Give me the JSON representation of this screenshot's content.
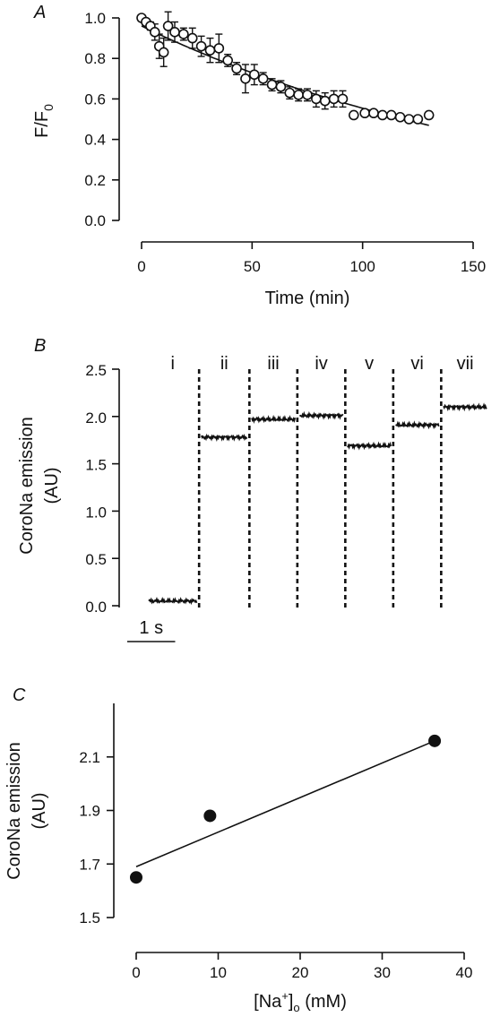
{
  "chart_data": [
    {
      "panel": "A",
      "type": "scatter",
      "xlabel": "Time (min)",
      "ylabel_main": "F/F",
      "ylabel_sub": "0",
      "xlim": [
        0,
        150
      ],
      "ylim": [
        0,
        1.0
      ],
      "xticks": [
        "0",
        "50",
        "100",
        "150"
      ],
      "yticks": [
        "0.0",
        "0.2",
        "0.4",
        "0.6",
        "0.8",
        "1.0"
      ],
      "points": [
        {
          "x": 0,
          "y": 1.0,
          "err": 0
        },
        {
          "x": 2,
          "y": 0.98,
          "err": 0.01
        },
        {
          "x": 4,
          "y": 0.96,
          "err": 0.02
        },
        {
          "x": 6,
          "y": 0.93,
          "err": 0.04
        },
        {
          "x": 8,
          "y": 0.86,
          "err": 0.06
        },
        {
          "x": 10,
          "y": 0.83,
          "err": 0.07
        },
        {
          "x": 12,
          "y": 0.96,
          "err": 0.07
        },
        {
          "x": 15,
          "y": 0.93,
          "err": 0.05
        },
        {
          "x": 19,
          "y": 0.92,
          "err": 0.03
        },
        {
          "x": 23,
          "y": 0.9,
          "err": 0.05
        },
        {
          "x": 27,
          "y": 0.86,
          "err": 0.05
        },
        {
          "x": 31,
          "y": 0.84,
          "err": 0.06
        },
        {
          "x": 35,
          "y": 0.85,
          "err": 0.07
        },
        {
          "x": 39,
          "y": 0.79,
          "err": 0.03
        },
        {
          "x": 43,
          "y": 0.75,
          "err": 0.03
        },
        {
          "x": 47,
          "y": 0.7,
          "err": 0.07
        },
        {
          "x": 51,
          "y": 0.72,
          "err": 0.05
        },
        {
          "x": 55,
          "y": 0.7,
          "err": 0.03
        },
        {
          "x": 59,
          "y": 0.67,
          "err": 0.03
        },
        {
          "x": 63,
          "y": 0.66,
          "err": 0.03
        },
        {
          "x": 67,
          "y": 0.63,
          "err": 0.03
        },
        {
          "x": 71,
          "y": 0.62,
          "err": 0.03
        },
        {
          "x": 75,
          "y": 0.62,
          "err": 0.03
        },
        {
          "x": 79,
          "y": 0.6,
          "err": 0.04
        },
        {
          "x": 83,
          "y": 0.59,
          "err": 0.04
        },
        {
          "x": 87,
          "y": 0.6,
          "err": 0.04
        },
        {
          "x": 91,
          "y": 0.6,
          "err": 0.04
        },
        {
          "x": 96,
          "y": 0.52,
          "err": 0
        },
        {
          "x": 101,
          "y": 0.53,
          "err": 0
        },
        {
          "x": 105,
          "y": 0.53,
          "err": 0
        },
        {
          "x": 109,
          "y": 0.52,
          "err": 0
        },
        {
          "x": 113,
          "y": 0.52,
          "err": 0
        },
        {
          "x": 117,
          "y": 0.51,
          "err": 0
        },
        {
          "x": 121,
          "y": 0.5,
          "err": 0
        },
        {
          "x": 125,
          "y": 0.5,
          "err": 0
        },
        {
          "x": 130,
          "y": 0.52,
          "err": 0
        }
      ],
      "fit": {
        "type": "exponential",
        "y0": 0.96,
        "k": 0.0055,
        "x_end": 130
      }
    },
    {
      "panel": "B",
      "type": "line",
      "ylabel_line1": "CoroNa emission",
      "ylabel_line2": "(AU)",
      "ylim": [
        0,
        2.5
      ],
      "yticks": [
        "0.0",
        "0.5",
        "1.0",
        "1.5",
        "2.0",
        "2.5"
      ],
      "xlim_s": [
        0,
        6.6
      ],
      "segments": [
        {
          "label": "i",
          "level": 0.05,
          "start": 0.0,
          "end": 1.0
        },
        {
          "label": "ii",
          "level": 1.78,
          "start": 1.1,
          "end": 2.05
        },
        {
          "label": "iii",
          "level": 1.97,
          "start": 2.15,
          "end": 3.05
        },
        {
          "label": "iv",
          "level": 2.01,
          "start": 3.15,
          "end": 4.05
        },
        {
          "label": "v",
          "level": 1.69,
          "start": 4.15,
          "end": 5.05
        },
        {
          "label": "vi",
          "level": 1.91,
          "start": 5.15,
          "end": 6.05
        },
        {
          "label": "vii",
          "level": 2.1,
          "start": 6.15,
          "end": 7.05
        }
      ],
      "dividers_s": [
        1.05,
        2.1,
        3.1,
        4.1,
        5.1,
        6.1
      ],
      "scalebar_label": "1 s",
      "scalebar_s": 1
    },
    {
      "panel": "C",
      "type": "scatter",
      "xlabel_pre": "[Na",
      "xlabel_sup": "+",
      "xlabel_mid": "]",
      "xlabel_sub": "o",
      "xlabel_post": " (mM)",
      "ylabel_line1": "CoroNa emission",
      "ylabel_line2": "(AU)",
      "xlim": [
        0,
        40
      ],
      "ylim": [
        1.5,
        2.3
      ],
      "xticks": [
        "0",
        "10",
        "20",
        "30",
        "40"
      ],
      "yticks": [
        "1.5",
        "1.7",
        "1.9",
        "2.1"
      ],
      "points": [
        {
          "x": 0,
          "y": 1.65
        },
        {
          "x": 9,
          "y": 1.88
        },
        {
          "x": 36.4,
          "y": 2.16
        }
      ],
      "fit": {
        "x": [
          0,
          36.4
        ],
        "y": [
          1.69,
          2.16
        ]
      }
    }
  ]
}
